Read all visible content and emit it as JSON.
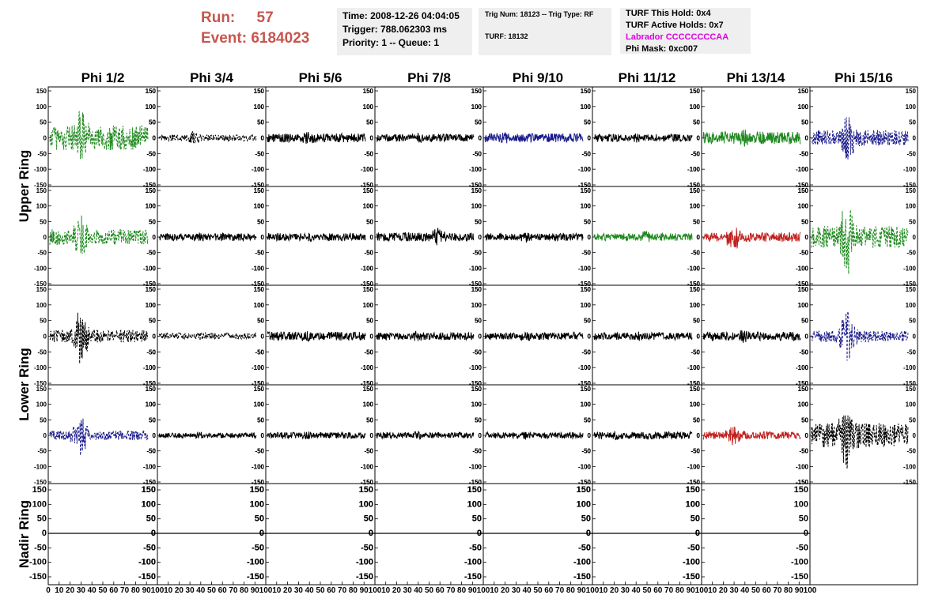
{
  "header": {
    "run_label": "Run:",
    "run_value": "57",
    "event_label": "Event:",
    "event_value": "6184023",
    "time": "Time: 2008-12-26 04:04:05",
    "trigger": "Trigger: 788.062303 ms",
    "priority": "Priority: 1 -- Queue: 1",
    "trig_num": "Trig Num: 18123 -- Trig Type: RF",
    "turf": "TURF: 18132",
    "turf_hold": "TURF This Hold: 0x4",
    "turf_active": "TURF Active Holds: 0x7",
    "labrador": "Labrador CCCCCCCCAA",
    "phi_mask": "Phi Mask: 0xc007"
  },
  "colors": {
    "run_text": "#c8554e",
    "labrador_text": "#e000e0",
    "info_bg": "#efefef",
    "trace_black": "#000000",
    "trace_green": "#1f8a1f",
    "trace_blue": "#1c1c8c",
    "trace_red": "#c0201e"
  },
  "chart_data": {
    "type": "line",
    "columns": [
      "Phi 1/2",
      "Phi 3/4",
      "Phi 5/6",
      "Phi 7/8",
      "Phi 9/10",
      "Phi 11/12",
      "Phi 13/14",
      "Phi 15/16"
    ],
    "rows": [
      "Upper Ring",
      "Upper Ring",
      "Lower Ring",
      "Lower Ring",
      "Nadir Ring"
    ],
    "row_titles": [
      {
        "text": "Upper Ring",
        "span": [
          0,
          1
        ]
      },
      {
        "text": "Lower Ring",
        "span": [
          2,
          3
        ]
      },
      {
        "text": "Nadir Ring",
        "span": [
          4,
          4
        ]
      }
    ],
    "xlim": [
      0,
      100
    ],
    "ylim": [
      -150,
      150
    ],
    "x_ticks": [
      "0",
      "10",
      "20",
      "30",
      "40",
      "50",
      "60",
      "70",
      "80",
      "90",
      "100"
    ],
    "y_ticks_left": [
      "150",
      "100",
      "50",
      "0",
      "-50",
      "-100",
      "-150"
    ],
    "y_ticks_right": [
      "150",
      "100",
      "50",
      "0",
      "-50",
      "-100",
      "-150"
    ],
    "panels": [
      {
        "row": 0,
        "col": 0,
        "color": "green",
        "dashed": true,
        "amplitude": 40,
        "burst_center": 30,
        "burst_peak": 90
      },
      {
        "row": 0,
        "col": 1,
        "color": "black",
        "dashed": true,
        "amplitude": 10,
        "burst_center": 35,
        "burst_peak": 25
      },
      {
        "row": 0,
        "col": 2,
        "color": "black",
        "dashed": false,
        "amplitude": 14,
        "burst_center": 40,
        "burst_peak": 20
      },
      {
        "row": 0,
        "col": 3,
        "color": "black",
        "dashed": false,
        "amplitude": 12,
        "burst_center": 40,
        "burst_peak": 18
      },
      {
        "row": 0,
        "col": 4,
        "color": "blue",
        "dashed": false,
        "amplitude": 14,
        "burst_center": 20,
        "burst_peak": 20
      },
      {
        "row": 0,
        "col": 5,
        "color": "black",
        "dashed": false,
        "amplitude": 12,
        "burst_center": 40,
        "burst_peak": 16
      },
      {
        "row": 0,
        "col": 6,
        "color": "green",
        "dashed": false,
        "amplitude": 20,
        "burst_center": 40,
        "burst_peak": 28
      },
      {
        "row": 0,
        "col": 7,
        "color": "blue",
        "dashed": true,
        "amplitude": 25,
        "burst_center": 35,
        "burst_peak": 85
      },
      {
        "row": 1,
        "col": 0,
        "color": "green",
        "dashed": true,
        "amplitude": 25,
        "burst_center": 30,
        "burst_peak": 70
      },
      {
        "row": 1,
        "col": 1,
        "color": "black",
        "dashed": false,
        "amplitude": 12,
        "burst_center": 40,
        "burst_peak": 16
      },
      {
        "row": 1,
        "col": 2,
        "color": "black",
        "dashed": false,
        "amplitude": 12,
        "burst_center": 40,
        "burst_peak": 16
      },
      {
        "row": 1,
        "col": 3,
        "color": "black",
        "dashed": false,
        "amplitude": 14,
        "burst_center": 60,
        "burst_peak": 30
      },
      {
        "row": 1,
        "col": 4,
        "color": "black",
        "dashed": false,
        "amplitude": 12,
        "burst_center": 40,
        "burst_peak": 18
      },
      {
        "row": 1,
        "col": 5,
        "color": "green",
        "dashed": false,
        "amplitude": 12,
        "burst_center": 50,
        "burst_peak": 20
      },
      {
        "row": 1,
        "col": 6,
        "color": "red",
        "dashed": false,
        "amplitude": 15,
        "burst_center": 30,
        "burst_peak": 45
      },
      {
        "row": 1,
        "col": 7,
        "color": "green",
        "dashed": true,
        "amplitude": 35,
        "burst_center": 35,
        "burst_peak": 130
      },
      {
        "row": 2,
        "col": 0,
        "color": "black",
        "dashed": true,
        "amplitude": 20,
        "burst_center": 30,
        "burst_peak": 95
      },
      {
        "row": 2,
        "col": 1,
        "color": "black",
        "dashed": true,
        "amplitude": 10,
        "burst_center": 40,
        "burst_peak": 15
      },
      {
        "row": 2,
        "col": 2,
        "color": "black",
        "dashed": false,
        "amplitude": 14,
        "burst_center": 40,
        "burst_peak": 20
      },
      {
        "row": 2,
        "col": 3,
        "color": "black",
        "dashed": false,
        "amplitude": 12,
        "burst_center": 40,
        "burst_peak": 18
      },
      {
        "row": 2,
        "col": 4,
        "color": "black",
        "dashed": false,
        "amplitude": 12,
        "burst_center": 40,
        "burst_peak": 18
      },
      {
        "row": 2,
        "col": 5,
        "color": "black",
        "dashed": false,
        "amplitude": 12,
        "burst_center": 40,
        "burst_peak": 18
      },
      {
        "row": 2,
        "col": 6,
        "color": "black",
        "dashed": false,
        "amplitude": 14,
        "burst_center": 40,
        "burst_peak": 22
      },
      {
        "row": 2,
        "col": 7,
        "color": "blue",
        "dashed": true,
        "amplitude": 18,
        "burst_center": 35,
        "burst_peak": 80
      },
      {
        "row": 3,
        "col": 0,
        "color": "blue",
        "dashed": true,
        "amplitude": 15,
        "burst_center": 30,
        "burst_peak": 70
      },
      {
        "row": 3,
        "col": 1,
        "color": "black",
        "dashed": false,
        "amplitude": 8,
        "burst_center": 40,
        "burst_peak": 12
      },
      {
        "row": 3,
        "col": 2,
        "color": "black",
        "dashed": false,
        "amplitude": 10,
        "burst_center": 40,
        "burst_peak": 14
      },
      {
        "row": 3,
        "col": 3,
        "color": "black",
        "dashed": false,
        "amplitude": 10,
        "burst_center": 40,
        "burst_peak": 14
      },
      {
        "row": 3,
        "col": 4,
        "color": "black",
        "dashed": false,
        "amplitude": 10,
        "burst_center": 40,
        "burst_peak": 14
      },
      {
        "row": 3,
        "col": 5,
        "color": "black",
        "dashed": false,
        "amplitude": 12,
        "burst_center": 20,
        "burst_peak": 16
      },
      {
        "row": 3,
        "col": 6,
        "color": "red",
        "dashed": false,
        "amplitude": 12,
        "burst_center": 30,
        "burst_peak": 35
      },
      {
        "row": 3,
        "col": 7,
        "color": "black",
        "dashed": true,
        "amplitude": 40,
        "burst_center": 35,
        "burst_peak": 120
      },
      {
        "row": 4,
        "col": 0,
        "color": "black",
        "dashed": false,
        "amplitude": 0,
        "burst_center": 50,
        "burst_peak": 0
      },
      {
        "row": 4,
        "col": 1,
        "color": "black",
        "dashed": false,
        "amplitude": 0,
        "burst_center": 50,
        "burst_peak": 0
      },
      {
        "row": 4,
        "col": 2,
        "color": "black",
        "dashed": false,
        "amplitude": 0,
        "burst_center": 50,
        "burst_peak": 0
      },
      {
        "row": 4,
        "col": 3,
        "color": "black",
        "dashed": false,
        "amplitude": 0,
        "burst_center": 50,
        "burst_peak": 0
      },
      {
        "row": 4,
        "col": 4,
        "color": "black",
        "dashed": false,
        "amplitude": 0,
        "burst_center": 50,
        "burst_peak": 0
      },
      {
        "row": 4,
        "col": 5,
        "color": "black",
        "dashed": false,
        "amplitude": 0,
        "burst_center": 50,
        "burst_peak": 0
      },
      {
        "row": 4,
        "col": 6,
        "color": "black",
        "dashed": false,
        "amplitude": 0,
        "burst_center": 50,
        "burst_peak": 0
      },
      {
        "row": 4,
        "col": 7,
        "color": "none",
        "dashed": false,
        "amplitude": 0,
        "burst_center": 50,
        "burst_peak": 0
      }
    ]
  }
}
